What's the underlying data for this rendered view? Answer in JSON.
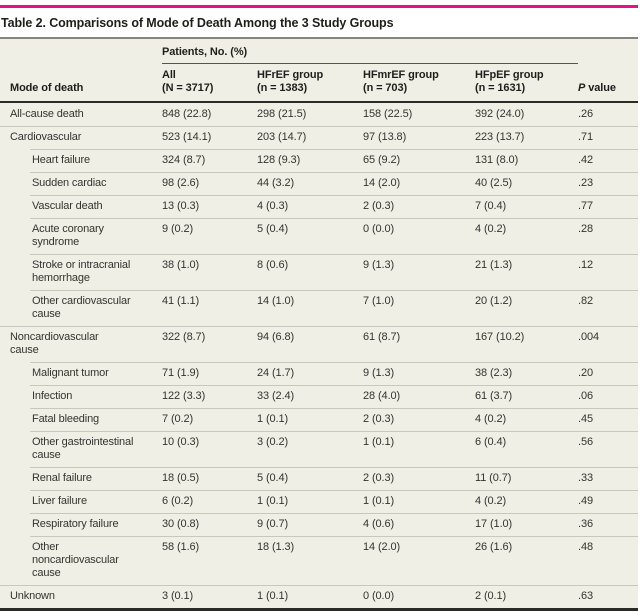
{
  "colors": {
    "accent": "#e9117d",
    "row_bg": "#f0efe6",
    "separator": "#c9c8bb",
    "rule_dark": "#2a2a28",
    "rule_gray": "#85847e",
    "text": "#34332e",
    "heading_text": "#1f1e1a"
  },
  "table": {
    "title": "Table 2. Comparisons of Mode of Death Among the 3 Study Groups",
    "group_header": "Patients, No. (%)",
    "columns": {
      "mode": "Mode of death",
      "all": {
        "line1": "All",
        "line2": "(N = 3717)"
      },
      "hfref": {
        "line1": "HFrEF group",
        "line2": "(n = 1383)"
      },
      "hfmref": {
        "line1": "HFmrEF group",
        "line2": "(n = 703)"
      },
      "hfpef": {
        "line1": "HFpEF group",
        "line2": "(n = 1631)"
      },
      "p": {
        "italic": "P",
        "rest": "value"
      }
    },
    "rows": [
      {
        "label": "All-cause death",
        "level": 1,
        "all": "848 (22.8)",
        "hfref": "298 (21.5)",
        "hfmref": "158 (22.5)",
        "hfpef": "392 (24.0)",
        "p": ".26"
      },
      {
        "label": "Cardiovascular",
        "level": 1,
        "all": "523 (14.1)",
        "hfref": "203 (14.7)",
        "hfmref": "97 (13.8)",
        "hfpef": "223 (13.7)",
        "p": ".71"
      },
      {
        "label": "Heart failure",
        "level": 2,
        "all": "324 (8.7)",
        "hfref": "128 (9.3)",
        "hfmref": "65 (9.2)",
        "hfpef": "131 (8.0)",
        "p": ".42"
      },
      {
        "label": "Sudden cardiac",
        "level": 2,
        "all": "98 (2.6)",
        "hfref": "44 (3.2)",
        "hfmref": "14 (2.0)",
        "hfpef": "40 (2.5)",
        "p": ".23"
      },
      {
        "label": "Vascular death",
        "level": 2,
        "all": "13 (0.3)",
        "hfref": "4 (0.3)",
        "hfmref": "2 (0.3)",
        "hfpef": "7 (0.4)",
        "p": ".77"
      },
      {
        "label": "Acute coronary syndrome",
        "level": 2,
        "all": "9 (0.2)",
        "hfref": "5 (0.4)",
        "hfmref": "0 (0.0)",
        "hfpef": "4 (0.2)",
        "p": ".28"
      },
      {
        "label": "Stroke or intracranial hemorrhage",
        "level": 2,
        "all": "38 (1.0)",
        "hfref": "8 (0.6)",
        "hfmref": "9 (1.3)",
        "hfpef": "21 (1.3)",
        "p": ".12"
      },
      {
        "label": "Other cardiovascular cause",
        "level": 2,
        "all": "41 (1.1)",
        "hfref": "14 (1.0)",
        "hfmref": "7 (1.0)",
        "hfpef": "20 (1.2)",
        "p": ".82"
      },
      {
        "label": "Noncardiovascular cause",
        "level": 1,
        "all": "322 (8.7)",
        "hfref": "94 (6.8)",
        "hfmref": "61 (8.7)",
        "hfpef": "167 (10.2)",
        "p": ".004"
      },
      {
        "label": "Malignant tumor",
        "level": 2,
        "all": "71 (1.9)",
        "hfref": "24 (1.7)",
        "hfmref": "9 (1.3)",
        "hfpef": "38 (2.3)",
        "p": ".20"
      },
      {
        "label": "Infection",
        "level": 2,
        "all": "122 (3.3)",
        "hfref": "33 (2.4)",
        "hfmref": "28 (4.0)",
        "hfpef": "61 (3.7)",
        "p": ".06"
      },
      {
        "label": "Fatal bleeding",
        "level": 2,
        "all": "7 (0.2)",
        "hfref": "1 (0.1)",
        "hfmref": "2 (0.3)",
        "hfpef": "4 (0.2)",
        "p": ".45"
      },
      {
        "label": "Other gastrointestinal cause",
        "level": 2,
        "all": "10 (0.3)",
        "hfref": "3 (0.2)",
        "hfmref": "1 (0.1)",
        "hfpef": "6 (0.4)",
        "p": ".56"
      },
      {
        "label": "Renal failure",
        "level": 2,
        "all": "18 (0.5)",
        "hfref": "5 (0.4)",
        "hfmref": "2 (0.3)",
        "hfpef": "11 (0.7)",
        "p": ".33"
      },
      {
        "label": "Liver failure",
        "level": 2,
        "all": "6 (0.2)",
        "hfref": "1 (0.1)",
        "hfmref": "1 (0.1)",
        "hfpef": "4 (0.2)",
        "p": ".49"
      },
      {
        "label": "Respiratory failure",
        "level": 2,
        "all": "30 (0.8)",
        "hfref": "9 (0.7)",
        "hfmref": "4 (0.6)",
        "hfpef": "17 (1.0)",
        "p": ".36"
      },
      {
        "label": "Other noncardiovascular cause",
        "level": 2,
        "all": "58 (1.6)",
        "hfref": "18 (1.3)",
        "hfmref": "14 (2.0)",
        "hfpef": "26 (1.6)",
        "p": ".48"
      },
      {
        "label": "Unknown",
        "level": 1,
        "all": "3 (0.1)",
        "hfref": "1 (0.1)",
        "hfmref": "0 (0.0)",
        "hfpef": "2 (0.1)",
        "p": ".63"
      }
    ]
  }
}
